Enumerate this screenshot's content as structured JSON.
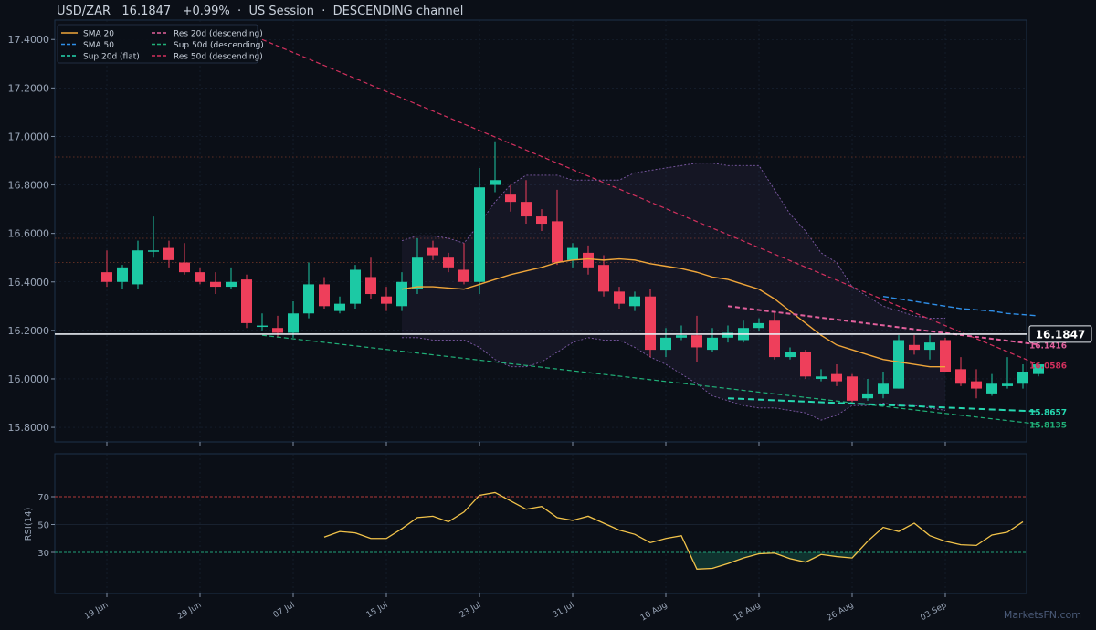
{
  "header": {
    "symbol": "USD/ZAR",
    "price": "16.1847",
    "change": "+0.99%",
    "session": "US Session",
    "channel": "DESCENDING channel"
  },
  "watermark": "MarketsFN.com",
  "colors": {
    "background": "#0b0f17",
    "up": "#1cc9a4",
    "down": "#ee3f5b",
    "sma20": "#f0a63a",
    "sma50": "#2f8fe8",
    "sup20": "#25d8b0",
    "sup50": "#20b078",
    "res20": "#e2609c",
    "res50": "#d3305e",
    "rsi": "#f2c34a",
    "bollinger": "#7d5aa6"
  },
  "chart_data": [
    {
      "type": "candlestick",
      "title": "USD/ZAR 16.1847 +0.99% · US Session · DESCENDING channel",
      "ylim": [
        15.74,
        17.48
      ],
      "y_ticks": [
        15.8,
        16.0,
        16.2,
        16.4,
        16.6,
        16.8,
        17.0,
        17.2,
        17.4
      ],
      "y_tick_labels": [
        "15.8000",
        "16.0000",
        "16.2000",
        "16.4000",
        "16.6000",
        "16.8000",
        "17.0000",
        "17.2000",
        "17.4000"
      ],
      "x_tick_labels": [
        "19 Jun",
        "29 Jun",
        "07 Jul",
        "15 Jul",
        "23 Jul",
        "31 Jul",
        "10 Aug",
        "18 Aug",
        "26 Aug",
        "03 Sep"
      ],
      "x_tick_index": [
        0,
        6,
        12,
        18,
        24,
        30,
        36,
        42,
        48,
        54
      ],
      "legend": [
        {
          "label": "SMA 20",
          "style": "solid",
          "color": "#f0a63a"
        },
        {
          "label": "SMA 50",
          "style": "dashed",
          "color": "#2f8fe8"
        },
        {
          "label": "Sup 20d (flat)",
          "style": "dashed",
          "color": "#25d8b0"
        },
        {
          "label": "Res 20d (descending)",
          "style": "dashed",
          "color": "#e2609c"
        },
        {
          "label": "Sup 50d (descending)",
          "style": "dashed",
          "color": "#20b078"
        },
        {
          "label": "Res 50d (descending)",
          "style": "dashed",
          "color": "#d3305e"
        }
      ],
      "legend_position": "top-left",
      "ohlc": [
        [
          16.44,
          16.53,
          16.38,
          16.4
        ],
        [
          16.4,
          16.47,
          16.37,
          16.46
        ],
        [
          16.39,
          16.57,
          16.37,
          16.53
        ],
        [
          16.53,
          16.67,
          16.5,
          16.53
        ],
        [
          16.54,
          16.57,
          16.46,
          16.49
        ],
        [
          16.48,
          16.56,
          16.43,
          16.44
        ],
        [
          16.44,
          16.46,
          16.39,
          16.4
        ],
        [
          16.4,
          16.44,
          16.35,
          16.38
        ],
        [
          16.38,
          16.46,
          16.37,
          16.4
        ],
        [
          16.41,
          16.43,
          16.21,
          16.23
        ],
        [
          16.22,
          16.27,
          16.2,
          16.22
        ],
        [
          16.21,
          16.26,
          16.17,
          16.19
        ],
        [
          16.19,
          16.32,
          16.17,
          16.27
        ],
        [
          16.27,
          16.48,
          16.25,
          16.39
        ],
        [
          16.39,
          16.42,
          16.29,
          16.3
        ],
        [
          16.28,
          16.34,
          16.27,
          16.31
        ],
        [
          16.31,
          16.47,
          16.29,
          16.45
        ],
        [
          16.42,
          16.5,
          16.33,
          16.35
        ],
        [
          16.34,
          16.38,
          16.28,
          16.31
        ],
        [
          16.3,
          16.44,
          16.28,
          16.4
        ],
        [
          16.37,
          16.58,
          16.35,
          16.5
        ],
        [
          16.54,
          16.57,
          16.49,
          16.51
        ],
        [
          16.5,
          16.52,
          16.44,
          16.46
        ],
        [
          16.45,
          16.56,
          16.39,
          16.4
        ],
        [
          16.4,
          16.87,
          16.35,
          16.79
        ],
        [
          16.8,
          16.98,
          16.77,
          16.82
        ],
        [
          16.76,
          16.8,
          16.69,
          16.73
        ],
        [
          16.73,
          16.82,
          16.64,
          16.67
        ],
        [
          16.67,
          16.7,
          16.61,
          16.64
        ],
        [
          16.65,
          16.78,
          16.47,
          16.48
        ],
        [
          16.49,
          16.56,
          16.46,
          16.54
        ],
        [
          16.52,
          16.55,
          16.43,
          16.46
        ],
        [
          16.47,
          16.51,
          16.34,
          16.36
        ],
        [
          16.36,
          16.38,
          16.29,
          16.31
        ],
        [
          16.3,
          16.36,
          16.28,
          16.34
        ],
        [
          16.34,
          16.37,
          16.09,
          16.12
        ],
        [
          16.12,
          16.21,
          16.09,
          16.17
        ],
        [
          16.17,
          16.22,
          16.16,
          16.18
        ],
        [
          16.18,
          16.26,
          16.07,
          16.13
        ],
        [
          16.12,
          16.21,
          16.11,
          16.17
        ],
        [
          16.17,
          16.22,
          16.15,
          16.19
        ],
        [
          16.16,
          16.24,
          16.15,
          16.21
        ],
        [
          16.21,
          16.25,
          16.2,
          16.23
        ],
        [
          16.24,
          16.28,
          16.08,
          16.09
        ],
        [
          16.09,
          16.13,
          16.08,
          16.11
        ],
        [
          16.11,
          16.12,
          16.0,
          16.01
        ],
        [
          16.0,
          16.04,
          15.99,
          16.01
        ],
        [
          16.02,
          16.06,
          15.97,
          15.99
        ],
        [
          16.01,
          16.02,
          15.9,
          15.91
        ],
        [
          15.92,
          16.0,
          15.91,
          15.94
        ],
        [
          15.94,
          16.03,
          15.92,
          15.98
        ],
        [
          15.96,
          16.18,
          15.96,
          16.16
        ],
        [
          16.14,
          16.18,
          16.1,
          16.12
        ],
        [
          16.12,
          16.18,
          16.08,
          16.15
        ],
        [
          16.16,
          16.17,
          16.03,
          16.03
        ],
        [
          16.04,
          16.09,
          15.97,
          15.98
        ],
        [
          15.99,
          16.04,
          15.92,
          15.96
        ],
        [
          15.94,
          16.02,
          15.93,
          15.98
        ],
        [
          15.97,
          16.09,
          15.96,
          15.98
        ],
        [
          15.98,
          16.06,
          15.96,
          16.03
        ],
        [
          16.02,
          16.07,
          16.01,
          16.06
        ]
      ],
      "sma20": {
        "start_index": 19,
        "values": [
          16.37,
          16.38,
          16.38,
          16.375,
          16.37,
          16.39,
          16.41,
          16.43,
          16.445,
          16.46,
          16.48,
          16.49,
          16.495,
          16.49,
          16.495,
          16.49,
          16.475,
          16.465,
          16.455,
          16.44,
          16.42,
          16.41,
          16.39,
          16.37,
          16.33,
          16.28,
          16.23,
          16.18,
          16.14,
          16.12,
          16.1,
          16.08,
          16.07,
          16.06,
          16.05,
          16.05
        ]
      },
      "sma50": {
        "start_index": 50,
        "values": [
          16.34,
          16.33,
          16.32,
          16.31,
          16.3,
          16.29,
          16.285,
          16.28,
          16.27,
          16.265,
          16.26
        ]
      },
      "bollinger_upper": {
        "start_index": 19,
        "values": [
          16.57,
          16.59,
          16.59,
          16.58,
          16.56,
          16.64,
          16.73,
          16.8,
          16.84,
          16.84,
          16.84,
          16.82,
          16.82,
          16.82,
          16.82,
          16.85,
          16.86,
          16.87,
          16.88,
          16.89,
          16.89,
          16.88,
          16.88,
          16.88,
          16.78,
          16.68,
          16.61,
          16.52,
          16.48,
          16.38,
          16.34,
          16.3,
          16.28,
          16.26,
          16.25,
          16.25
        ]
      },
      "bollinger_lower": {
        "start_index": 19,
        "values": [
          16.17,
          16.17,
          16.16,
          16.16,
          16.16,
          16.13,
          16.08,
          16.05,
          16.05,
          16.07,
          16.11,
          16.15,
          16.17,
          16.16,
          16.16,
          16.13,
          16.09,
          16.06,
          16.02,
          15.98,
          15.93,
          15.91,
          15.89,
          15.88,
          15.88,
          15.87,
          15.86,
          15.83,
          15.85,
          15.89,
          15.89,
          15.9,
          15.89,
          15.89,
          15.88,
          15.87
        ]
      },
      "levels": [
        {
          "name": "Res 50d (descending)",
          "x": [
            10,
            60
          ],
          "y": [
            17.4,
            16.0586
          ],
          "label": "16.0586",
          "color": "#d3305e"
        },
        {
          "name": "Res 20d (descending)",
          "x": [
            40,
            60
          ],
          "y": [
            16.3,
            16.1416
          ],
          "label": "16.1416",
          "color": "#e2609c"
        },
        {
          "name": "Sup 50d (descending)",
          "x": [
            10,
            60
          ],
          "y": [
            16.18,
            15.8135
          ],
          "label": "15.8135",
          "color": "#20b078"
        },
        {
          "name": "Sup 20d (flat)",
          "x": [
            40,
            60
          ],
          "y": [
            15.92,
            15.8657
          ],
          "label": "15.8657",
          "color": "#25d8b0"
        }
      ],
      "current_price": 16.1847,
      "reference_lines": [
        16.915,
        16.58,
        16.48
      ],
      "shaded_region": [
        19,
        60
      ]
    },
    {
      "type": "line",
      "name": "RSI(14)",
      "ylabel": "RSI(14)",
      "y_ticks": [
        30,
        50,
        70
      ],
      "ylim": [
        0,
        100
      ],
      "overbought": 70,
      "oversold": 30,
      "start_index": 14,
      "values": [
        41,
        45,
        44,
        40,
        40,
        47,
        55,
        56,
        52,
        59,
        71,
        73,
        67,
        61,
        63,
        55,
        53,
        56,
        51,
        46,
        43,
        37,
        40,
        42,
        18,
        18.5,
        22,
        26,
        29,
        29.5,
        25.5,
        23,
        28.5,
        27,
        26,
        38,
        48,
        45,
        51,
        42,
        38,
        35.5,
        35,
        42.5,
        44.5,
        52
      ]
    }
  ]
}
